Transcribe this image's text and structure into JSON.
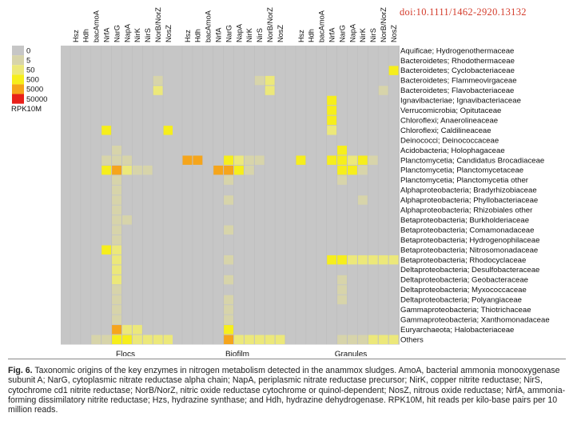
{
  "doi": "doi:10.1111/1462-2920.13132",
  "chart_data": {
    "type": "heatmap",
    "legend": {
      "title": "RPK10M",
      "levels": [
        {
          "label": "0",
          "color": "#c6c6c6"
        },
        {
          "label": "5",
          "color": "#d7d4aa"
        },
        {
          "label": "50",
          "color": "#ece87a"
        },
        {
          "label": "500",
          "color": "#f6ee1c"
        },
        {
          "label": "5000",
          "color": "#f5a51b"
        },
        {
          "label": "50000",
          "color": "#e8201a"
        }
      ]
    },
    "enzymes": [
      "Hsz",
      "Hdh",
      "bacAmoA",
      "NrfA",
      "NarG",
      "NapA",
      "NirK",
      "NirS",
      "NorB/NorZ",
      "NosZ"
    ],
    "taxa": [
      "Aquificae; Hydrogenothermaceae",
      "Bacteroidetes; Rhodothermaceae",
      "Bacteroidetes; Cyclobacteriaceae",
      "Bacteroidetes; Flammeovirgaceae",
      "Bacteroidetes; Flavobacteriaceae",
      "Ignavibacteriae; Ignavibacteriaceae",
      "Verrucomicrobia; Opitutaceae",
      "Chloroflexi; Anaerolineaceae",
      "Chloroflexi; Caldilineaceae",
      "Deinococci; Deinococcaceae",
      "Acidobacteria; Holophagaceae",
      "Planctomycetia; Candidatus Brocadiaceae",
      "Planctomycetia; Planctomycetaceae",
      "Planctomycetia; Planctomycetia other",
      "Alphaproteobacteria; Bradyrhizobiaceae",
      "Alphaproteobacteria; Phyllobacteriaceae",
      "Alphaproteobacteria; Rhizobiales other",
      "Betaproteobacteria; Burkholderiaceae",
      "Betaproteobacteria; Comamonadaceae",
      "Betaproteobacteria; Hydrogenophilaceae",
      "Betaproteobacteria; Nitrosomonadaceae",
      "Betaproteobacteria; Rhodocyclaceae",
      "Deltaproteobacteria; Desulfobacteraceae",
      "Deltaproteobacteria; Geobacteraceae",
      "Deltaproteobacteria; Myxococcaceae",
      "Deltaproteobacteria; Polyangiaceae",
      "Gammaproteobacteria; Thiotrichaceae",
      "Gammaproteobacteria; Xanthomonadaceae",
      "Euryarchaeota; Halobacteriaceae",
      "Others"
    ],
    "panels": [
      {
        "name": "Flocs",
        "columns": 10,
        "matrix": [
          "0000000000",
          "0000000000",
          "0000000000",
          "0000000010",
          "0000000020",
          "0000000000",
          "0000000000",
          "0000000000",
          "0003000003",
          "0000000000",
          "0000100000",
          "0001110000",
          "0003421100",
          "0000100000",
          "0000100000",
          "0000100000",
          "0000100000",
          "0000110000",
          "0000100000",
          "0000100000",
          "0003200000",
          "0000200000",
          "0000200000",
          "0000200000",
          "0000100000",
          "0000100000",
          "0000100000",
          "0000100000",
          "0000422000",
          "0011332222"
        ],
        "subcolumns": [
          "111111111111111111111111111111",
          "000000000000000000000000000000",
          "000000000001000000000000000000",
          "000000000000000000000000000000",
          "000000000000000000000000000000",
          "000000000000000000000000000000",
          "000000000000000000000000000000",
          "000000000000000000000000000000",
          "000000000000000000000000000000",
          "000000000000000000000000000000"
        ]
      },
      {
        "name": "Biofilm",
        "columns": 10,
        "matrix": [
          "0000000000",
          "0000000000",
          "0000000000",
          "0000000120",
          "0000000020",
          "0000000000",
          "0000000000",
          "0000000000",
          "0000000000",
          "0000000000",
          "0000000000",
          "4400321100",
          "0004431000",
          "0000100000",
          "0000000000",
          "0000100000",
          "0000000000",
          "0000000000",
          "0000100000",
          "0000000000",
          "0000000000",
          "0000100000",
          "0000000000",
          "0000100000",
          "0000000000",
          "0000100000",
          "0000100000",
          "0000100000",
          "0000300000",
          "0000422222"
        ],
        "subcolumns": [
          "000000000000000000000000000000",
          "000000000000000000000000000000",
          "000000000000000000000000000000",
          "000000000000000000000000000000",
          "000000000000000000000000000000",
          "000000000000000000000000000000",
          "000000000000000000000000000000",
          "000000000000000000000000000000",
          "000000000000000000000000000000",
          "000000000000000000000000000000"
        ]
      },
      {
        "name": "Granules",
        "columns": 10,
        "matrix": [
          "0000000000",
          "0000000000",
          "0000000003",
          "0000000000",
          "0000000010",
          "0003000000",
          "0003000000",
          "0003000000",
          "0002000000",
          "0000000000",
          "0000300000",
          "3003323100",
          "0000331000",
          "0000100000",
          "0000000000",
          "0000001000",
          "0000000000",
          "0000000000",
          "0000000000",
          "0000000000",
          "0000000000",
          "0003322222",
          "0000000000",
          "0000100000",
          "0000100000",
          "0000100000",
          "0000000000",
          "0000000000",
          "0000000000",
          "0000111222"
        ],
        "subcolumns": [
          "000000000000000000000000000000",
          "000000000000000000000000000000",
          "000000000000000000000000000000",
          "000000000000000000000000000000",
          "000000000000000000000000000000",
          "000000000000000000000000000000",
          "000000000000000000000000000000",
          "000000000000000000000000000000",
          "000000000000000000000000000000",
          "000000000000000000000000000000"
        ]
      }
    ]
  },
  "caption": {
    "label": "Fig. 6.",
    "text": "Taxonomic origins of the key enzymes in nitrogen metabolism detected in the anammox sludges. AmoA, bacterial ammonia monooxygenase subunit A; NarG, cytoplasmic nitrate reductase alpha chain; NapA, periplasmic nitrate reductase precursor; NirK, copper nitrite reductase; NirS, cytochrome cd1 nitrite reductase; NorB/NorZ, nitric oxide reductase cytochrome or quinol-dependent; NosZ, nitrous oxide reductase; NrfA, ammonia-forming dissimilatory nitrite reductase; Hzs, hydrazine synthase; and Hdh, hydrazine dehydrogenase. RPK10M, hit reads per kilo-base pairs per 10 million reads."
  }
}
